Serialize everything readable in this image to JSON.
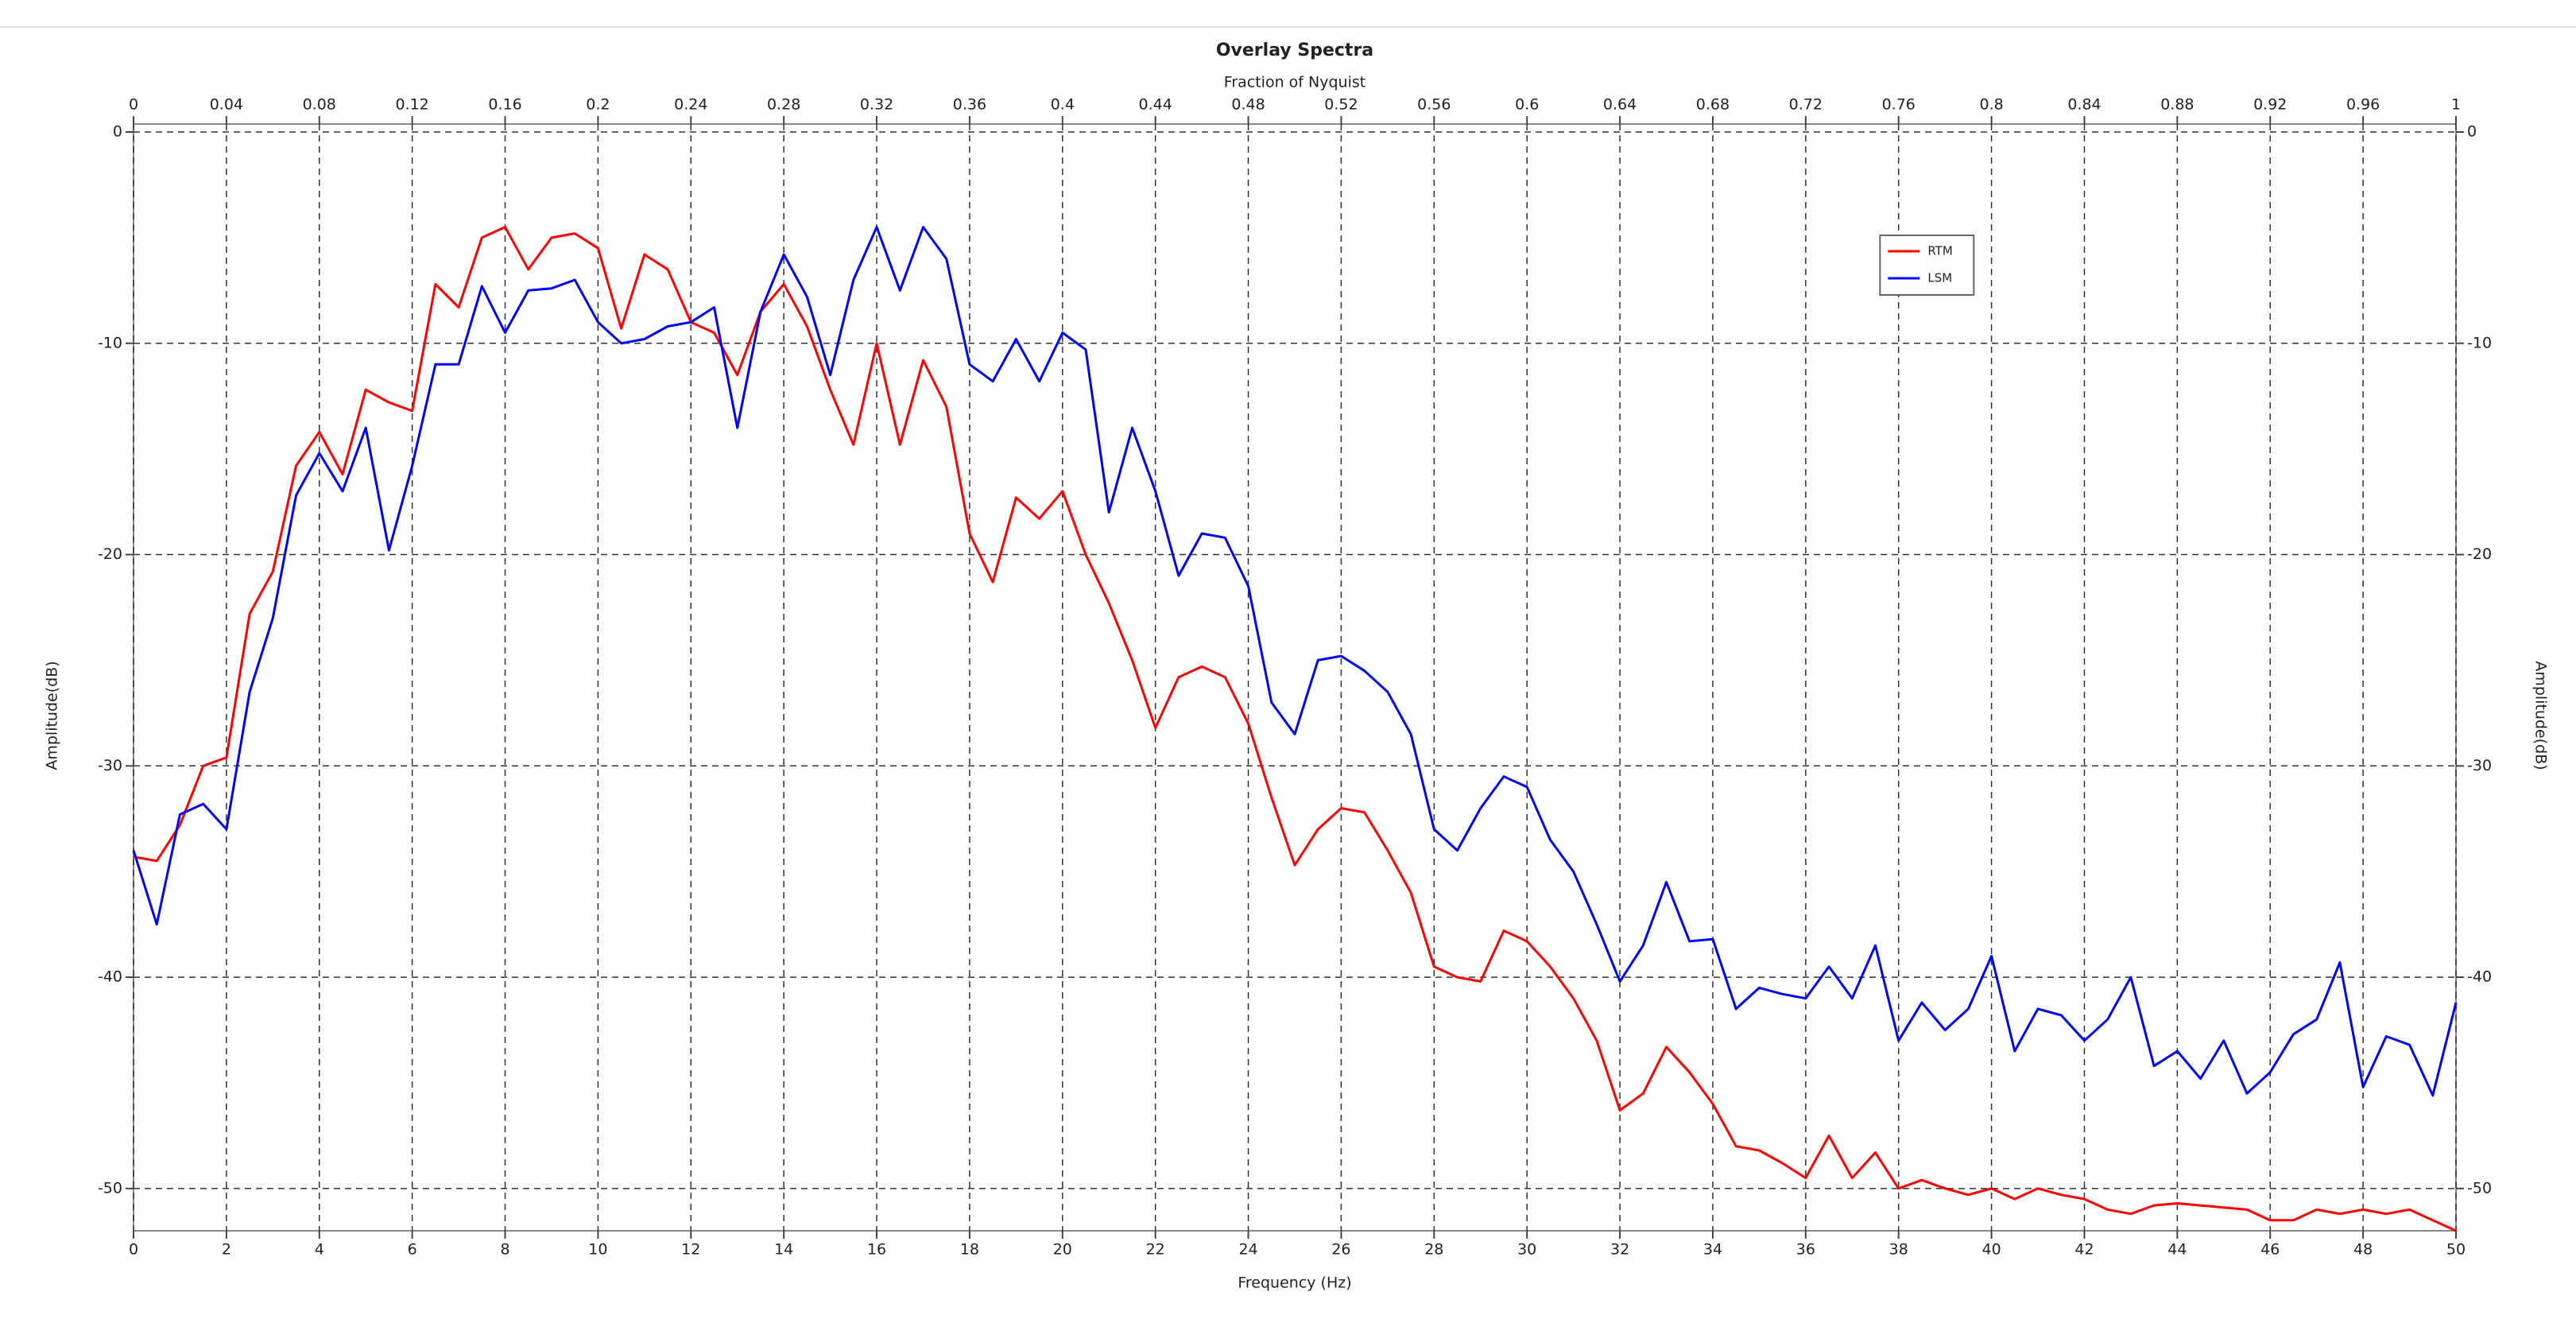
{
  "chart_data": {
    "type": "line",
    "title": "Overlay Spectra",
    "x_label": "Frequency (Hz)",
    "y_label": "Amplitude(dB)",
    "x2_label": "Fraction of Nyquist",
    "x": [
      0,
      0.5,
      1,
      1.5,
      2,
      2.5,
      3,
      3.5,
      4,
      4.5,
      5,
      5.5,
      6,
      6.5,
      7,
      7.5,
      8,
      8.5,
      9,
      9.5,
      10,
      10.5,
      11,
      11.5,
      12,
      12.5,
      13,
      13.5,
      14,
      14.5,
      15,
      15.5,
      16,
      16.5,
      17,
      17.5,
      18,
      18.5,
      19,
      19.5,
      20,
      20.5,
      21,
      21.5,
      22,
      22.5,
      23,
      23.5,
      24,
      24.5,
      25,
      25.5,
      26,
      26.5,
      27,
      27.5,
      28,
      28.5,
      29,
      29.5,
      30,
      30.5,
      31,
      31.5,
      32,
      32.5,
      33,
      33.5,
      34,
      34.5,
      35,
      35.5,
      36,
      36.5,
      37,
      37.5,
      38,
      38.5,
      39,
      39.5,
      40,
      40.5,
      41,
      41.5,
      42,
      42.5,
      43,
      43.5,
      44,
      44.5,
      45,
      45.5,
      46,
      46.5,
      47,
      47.5,
      48,
      48.5,
      49,
      49.5,
      50
    ],
    "series": [
      {
        "name": "RTM",
        "color": "#ff0000",
        "values": [
          -34.3,
          -34.5,
          -32.8,
          -30.0,
          -29.6,
          -22.8,
          -20.8,
          -15.8,
          -14.2,
          -16.2,
          -12.2,
          -12.8,
          -13.2,
          -7.2,
          -8.3,
          -5.0,
          -4.5,
          -6.5,
          -5.0,
          -4.8,
          -5.5,
          -9.3,
          -5.8,
          -6.5,
          -9.0,
          -9.5,
          -11.5,
          -8.5,
          -7.2,
          -9.2,
          -12.2,
          -14.8,
          -10.0,
          -14.8,
          -10.8,
          -13.0,
          -19.0,
          -21.3,
          -17.3,
          -18.3,
          -17.0,
          -20.0,
          -22.3,
          -25.0,
          -28.2,
          -25.8,
          -25.3,
          -25.8,
          -28.0,
          -31.5,
          -34.7,
          -33.0,
          -32.0,
          -32.2,
          -34.0,
          -36.0,
          -39.5,
          -40.0,
          -40.2,
          -37.8,
          -38.3,
          -39.5,
          -41.0,
          -43.0,
          -46.3,
          -45.5,
          -43.3,
          -44.5,
          -46.0,
          -48.0,
          -48.2,
          -48.8,
          -49.5,
          -47.5,
          -49.5,
          -48.3,
          -50.0,
          -49.6,
          -50.0,
          -50.3,
          -50.0,
          -50.5,
          -50.0,
          -50.3,
          -50.5,
          -51.0,
          -51.2,
          -50.8,
          -50.7,
          -50.8,
          -50.9,
          -51.0,
          -51.5,
          -51.5,
          -51.0,
          -51.2,
          -51.0,
          -51.2,
          -51.0,
          -51.5,
          -52.0
        ]
      },
      {
        "name": "LSM",
        "color": "#0000ff",
        "values": [
          -34.0,
          -37.5,
          -32.3,
          -31.8,
          -33.0,
          -26.5,
          -23.0,
          -17.2,
          -15.2,
          -17.0,
          -14.0,
          -19.8,
          -15.8,
          -11.0,
          -11.0,
          -7.3,
          -9.5,
          -7.5,
          -7.4,
          -7.0,
          -9.0,
          -10.0,
          -9.8,
          -9.2,
          -9.0,
          -8.3,
          -14.0,
          -8.5,
          -5.8,
          -7.8,
          -11.5,
          -7.0,
          -4.5,
          -7.5,
          -4.5,
          -6.0,
          -11.0,
          -11.8,
          -9.8,
          -11.8,
          -9.5,
          -10.3,
          -18.0,
          -14.0,
          -17.0,
          -21.0,
          -19.0,
          -19.2,
          -21.5,
          -27.0,
          -28.5,
          -25.0,
          -24.8,
          -25.5,
          -26.5,
          -28.5,
          -33.0,
          -34.0,
          -32.0,
          -30.5,
          -31.0,
          -33.5,
          -35.0,
          -37.5,
          -40.2,
          -38.5,
          -35.5,
          -38.3,
          -38.2,
          -41.5,
          -40.5,
          -40.8,
          -41.0,
          -39.5,
          -41.0,
          -38.5,
          -43.0,
          -41.2,
          -42.5,
          -41.5,
          -39.0,
          -43.5,
          -41.5,
          -41.8,
          -43.0,
          -42.0,
          -40.0,
          -44.2,
          -43.5,
          -44.8,
          -43.0,
          -45.5,
          -44.5,
          -42.7,
          -42.0,
          -39.3,
          -45.2,
          -42.8,
          -43.2,
          -45.6,
          -41.2
        ]
      }
    ],
    "xlim": [
      0,
      50
    ],
    "xticks": [
      0,
      2,
      4,
      6,
      8,
      10,
      12,
      14,
      16,
      18,
      20,
      22,
      24,
      26,
      28,
      30,
      32,
      34,
      36,
      38,
      40,
      42,
      44,
      46,
      48,
      50
    ],
    "x2lim": [
      0,
      1
    ],
    "x2ticks": [
      0,
      0.04,
      0.08,
      0.12,
      0.16,
      0.2,
      0.24,
      0.28,
      0.32,
      0.36,
      0.4,
      0.44,
      0.48,
      0.52,
      0.56,
      0.6,
      0.64,
      0.68,
      0.72,
      0.76,
      0.8,
      0.84,
      0.88,
      0.92,
      0.96,
      1
    ],
    "ylim": [
      -52,
      0
    ],
    "yticks": [
      -50,
      -40,
      -30,
      -20,
      -10,
      0
    ],
    "grid": true,
    "legend": "upper right"
  }
}
